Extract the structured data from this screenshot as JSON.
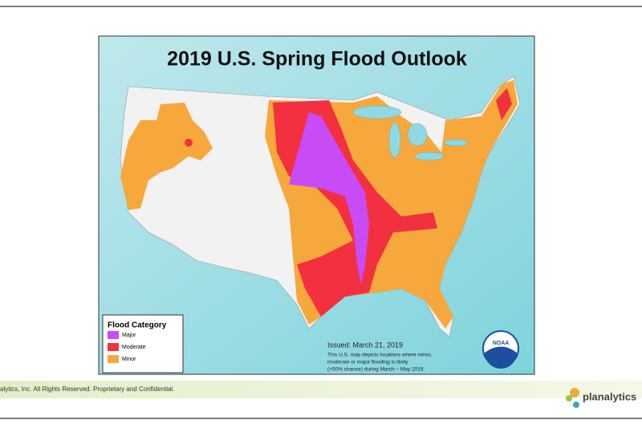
{
  "slide": {
    "map": {
      "title": "2019 U.S. Spring Flood Outlook",
      "legend": {
        "title": "Flood Category",
        "items": [
          {
            "label": "Major",
            "color": "#c84cf5"
          },
          {
            "label": "Moderate",
            "color": "#f2303f"
          },
          {
            "label": "Minor",
            "color": "#f7a83c"
          }
        ]
      },
      "issued": "Issued:  March 21, 2019",
      "note": [
        "This U.S. map depicts locations where minor,",
        "moderate or major flooding is likely",
        "(>50% chance) during March – May 2019."
      ],
      "logo": "NOAA"
    },
    "footer": {
      "copyright": "alytics, Inc. All Rights Reserved. Proprietary and Confidential.",
      "brand": "planalytics"
    }
  }
}
